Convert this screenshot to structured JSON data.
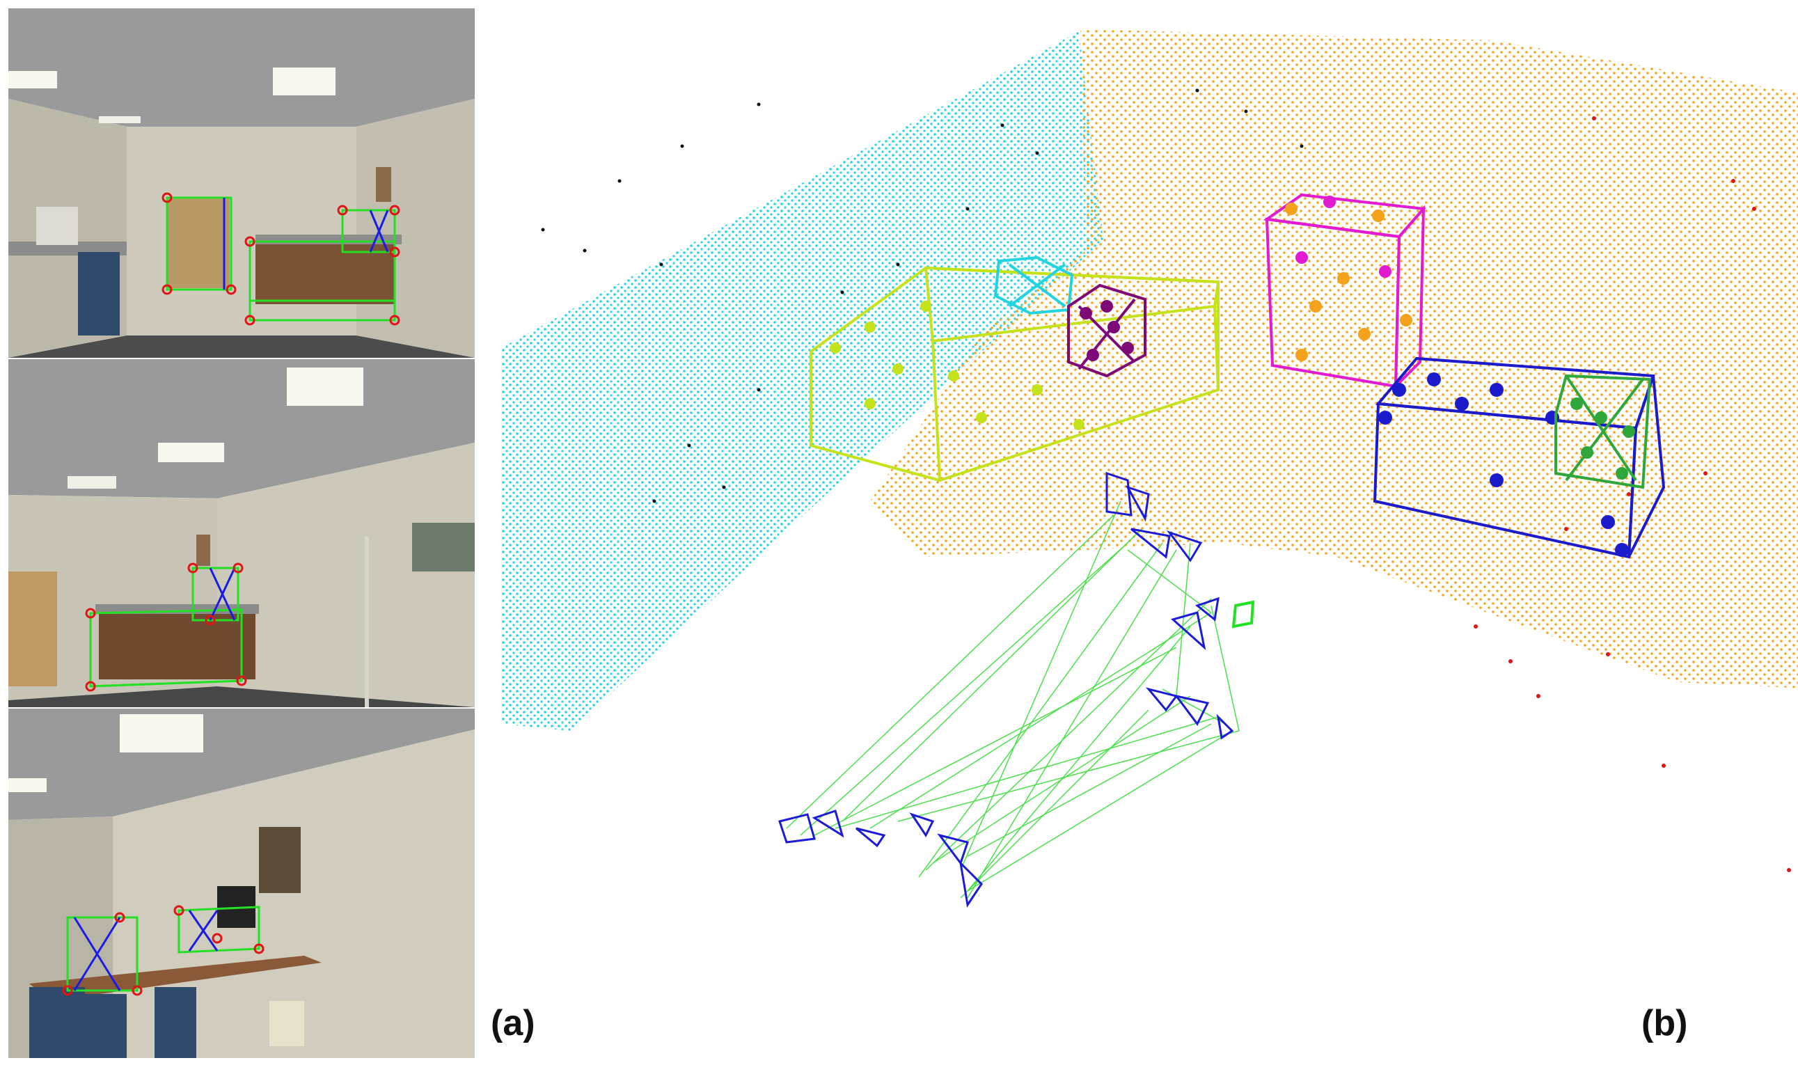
{
  "figure": {
    "panel_labels": {
      "a": "(a)",
      "b": "(b)"
    }
  },
  "colors": {
    "background": "#ffffff",
    "wall_left": "#22d3e0",
    "wall_back": "#f4a21c",
    "wall_right": "#1b1bd9",
    "outlier": "#e01515",
    "noise": "#111111",
    "box_yellow": "#c6e21a",
    "box_purple": "#7e0a78",
    "box_magenta": "#e21ad2",
    "box_blue": "#1b1bcc",
    "box_green": "#2ea83a",
    "trajectory_line": "#4be04b",
    "camera_frustum": "#1b1bd9",
    "annotation_green": "#24e024",
    "annotation_red": "#e01515",
    "annotation_blue": "#1b1be8"
  },
  "icons": [
    "rendered-office-view",
    "point-cloud-reconstruction"
  ]
}
